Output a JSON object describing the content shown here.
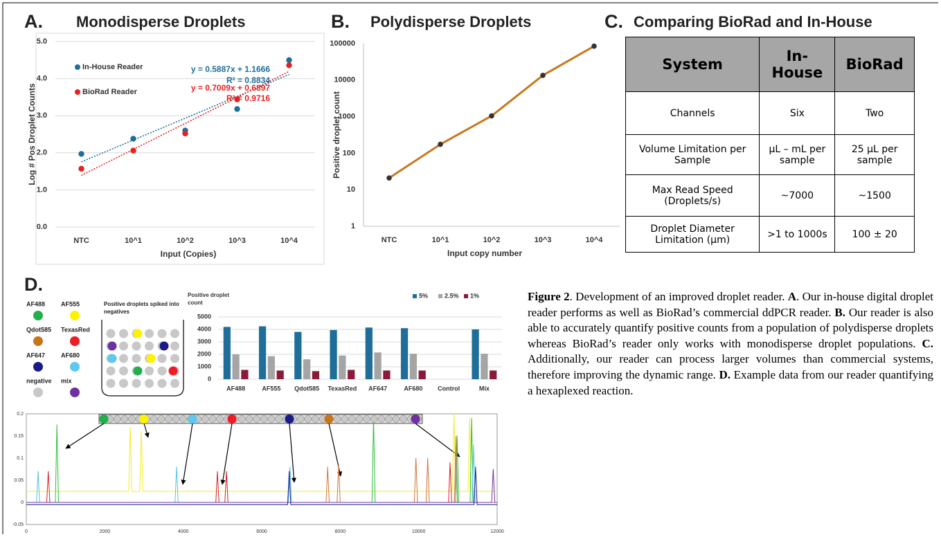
{
  "chart_data": [
    {
      "type": "scatter",
      "label": "A.",
      "title": "Monodisperse Droplets",
      "x_label": "Input (Copies)",
      "y_label": "Log # Pos Droplet Counts",
      "categories": [
        "NTC",
        "10^1",
        "10^2",
        "10^3",
        "10^4"
      ],
      "series": [
        {
          "name": "In-House Reader",
          "color": "#1f6e99",
          "values": [
            1.97,
            2.38,
            2.6,
            3.18,
            4.5
          ],
          "trendline": {
            "equation": "y = 0.5887x + 1.1666",
            "r_squared": "R² = 0.8834",
            "slope": 0.5887,
            "intercept": 1.1666
          }
        },
        {
          "name": "BioRad Reader",
          "color": "#e8201f",
          "values": [
            1.57,
            2.06,
            2.52,
            3.44,
            4.36
          ],
          "trendline": {
            "equation": "y = 0.7009x + 0.6897",
            "r_squared": "R² = 0.9716",
            "slope": 0.7009,
            "intercept": 0.6897
          }
        }
      ],
      "ylim": [
        0,
        5
      ],
      "yticks": [
        {
          "value": 0,
          "label": "0.0"
        },
        {
          "value": 1,
          "label": "1.0"
        },
        {
          "value": 2,
          "label": "2.0"
        },
        {
          "value": 3,
          "label": "3.0"
        },
        {
          "value": 4,
          "label": "4.0"
        },
        {
          "value": 5,
          "label": "5.0"
        }
      ],
      "grid": true
    },
    {
      "type": "line",
      "label": "B.",
      "title": "Polydisperse Droplets",
      "x_label": "Input copy number",
      "y_label": "Positive droplet count",
      "categories": [
        "NTC",
        "10^1",
        "10^2",
        "10^3",
        "10^4"
      ],
      "series": [
        {
          "color": "#c8781a",
          "marker_color": "#333333",
          "values": [
            21,
            175,
            1050,
            13500,
            85000
          ]
        }
      ],
      "ylim": [
        1,
        100000
      ],
      "yticks": [
        1,
        10,
        100,
        1000,
        10000,
        100000
      ],
      "log_y": true,
      "grid": false
    },
    {
      "type": "bar",
      "y_label": "Positive droplet count",
      "categories": [
        "AF488",
        "AF555",
        "Qdot585",
        "TexasRed",
        "AF647",
        "AF680",
        "Control",
        "Mix"
      ],
      "series": [
        {
          "name": "5%",
          "color": "#1f6e99",
          "values": [
            4200,
            4250,
            3800,
            3950,
            4150,
            4100,
            0,
            4000
          ]
        },
        {
          "name": "2.5%",
          "color": "#a5a5a5",
          "values": [
            2000,
            1850,
            1600,
            1900,
            2150,
            2050,
            0,
            2050
          ]
        },
        {
          "name": "1%",
          "color": "#8b1a3a",
          "values": [
            750,
            700,
            650,
            750,
            700,
            700,
            0,
            700
          ]
        }
      ],
      "ylim": [
        0,
        5000
      ],
      "yticks": [
        0,
        1000,
        2000,
        3000,
        4000,
        5000
      ],
      "grid": true,
      "legend": "top-right"
    },
    {
      "type": "line",
      "xlim": [
        0,
        12000
      ],
      "xticks": [
        0,
        2000,
        4000,
        6000,
        8000,
        10000,
        12000
      ],
      "ylim": [
        -0.05,
        0.2
      ],
      "yticks": [
        -0.05,
        0,
        0.05,
        0.1,
        0.15,
        0.2
      ],
      "grid": false,
      "series": [
        {
          "color": "#f2ef1c",
          "x": [
            0,
            2610,
            2650,
            2690,
            2890,
            2930,
            2970,
            10860,
            10900,
            10940,
            11260,
            11300,
            11340,
            12000
          ],
          "values": [
            0.025,
            0.025,
            0.17,
            0.025,
            0.025,
            0.16,
            0.025,
            0.025,
            0.2,
            0.025,
            0.025,
            0.19,
            0.025,
            0.025
          ]
        },
        {
          "color": "#2dbf3a",
          "x": [
            0,
            740,
            780,
            820,
            8810,
            8850,
            8890,
            10940,
            10980,
            11020,
            11310,
            11350,
            11390,
            12000
          ],
          "values": [
            0,
            0,
            0.175,
            0,
            0,
            0.19,
            0,
            0,
            0.15,
            0,
            0,
            0.19,
            0,
            0
          ]
        },
        {
          "color": "#4fc3e8",
          "x": [
            0,
            260,
            300,
            340,
            3790,
            3830,
            3870,
            6680,
            6720,
            6760,
            10910,
            10950,
            10990,
            11360,
            11400,
            11440,
            12000
          ],
          "values": [
            0,
            0,
            0.07,
            0,
            0,
            0.08,
            0,
            0,
            0.08,
            0,
            0,
            0.1,
            0,
            0,
            0.13,
            0,
            0
          ]
        },
        {
          "color": "#d81f26",
          "x": [
            0,
            520,
            560,
            600,
            4830,
            4870,
            4910,
            5060,
            5100,
            5140,
            10760,
            10800,
            10840,
            12000
          ],
          "values": [
            0,
            0,
            0.07,
            0,
            0,
            0.07,
            0,
            0,
            0.07,
            0,
            0,
            0.09,
            0,
            0
          ]
        },
        {
          "color": "#d2733a",
          "x": [
            0,
            7640,
            7680,
            7720,
            7920,
            7960,
            8000,
            9890,
            9930,
            9970,
            10190,
            10230,
            10270,
            10910,
            10950,
            10990,
            12000
          ],
          "values": [
            0,
            0,
            0.08,
            0,
            0,
            0.085,
            0,
            0,
            0.1,
            0,
            0,
            0.1,
            0,
            0,
            0.15,
            0,
            0
          ]
        },
        {
          "color": "#1a1a8c",
          "x": [
            0,
            6660,
            6700,
            6740,
            11410,
            11450,
            11490,
            12000
          ],
          "values": [
            -0.005,
            -0.005,
            0.07,
            -0.005,
            -0.005,
            0.08,
            -0.005,
            -0.005
          ]
        },
        {
          "color": "#7030a0",
          "x": [
            0,
            11860,
            11900,
            11940,
            12000
          ],
          "values": [
            0,
            0,
            0.075,
            0,
            0
          ]
        }
      ]
    }
  ],
  "table": {
    "label": "C.",
    "title": "Comparing BioRad and In-House",
    "header": [
      "System",
      "In-House",
      "BioRad"
    ],
    "rows": [
      [
        "Channels",
        "Six",
        "Two"
      ],
      [
        "Volume Limitation per Sample",
        "µL – mL per sample",
        "25 µL per sample"
      ],
      [
        "Max Read Speed (Droplets/s)",
        "~7000",
        "~1500"
      ],
      [
        "Droplet Diameter Limitation (µm)",
        ">1 to 1000s",
        "100 ± 20"
      ]
    ]
  },
  "diagram": {
    "label": "D.",
    "note": "Positive droplets spiked into negatives",
    "legend": [
      {
        "label": "AF488",
        "color": "#22b04a"
      },
      {
        "label": "AF555",
        "color": "#fff200"
      },
      {
        "label": "Qdot585",
        "color": "#c8751a"
      },
      {
        "label": "TexasRed",
        "color": "#ee1c24"
      },
      {
        "label": "AF647",
        "color": "#1a1a8c"
      },
      {
        "label": "AF680",
        "color": "#5ec8f0"
      },
      {
        "label": "negative",
        "color": "#c8c8c8"
      },
      {
        "label": "mix",
        "color": "#7030a0"
      }
    ]
  },
  "caption": {
    "segments": [
      {
        "text": "Figure 2",
        "bold": true
      },
      {
        "text": ". Development of an improved droplet reader. ",
        "bold": false
      },
      {
        "text": "A",
        "bold": true
      },
      {
        "text": ". Our in-house digital droplet reader performs as well as BioRad’s commercial ddPCR reader. ",
        "bold": false
      },
      {
        "text": "B.",
        "bold": true
      },
      {
        "text": " Our reader is also able to accurately quantify positive counts from a population of polydisperse droplets whereas BioRad’s reader only works with monodisperse droplet populations. ",
        "bold": false
      },
      {
        "text": "C.",
        "bold": true
      },
      {
        "text": " Additionally, our reader can process larger volumes than commercial systems, therefore improving the dynamic range. ",
        "bold": false
      },
      {
        "text": "D.",
        "bold": true
      },
      {
        "text": " Example data from our reader quantifying a hexaplexed reaction.",
        "bold": false
      }
    ]
  }
}
